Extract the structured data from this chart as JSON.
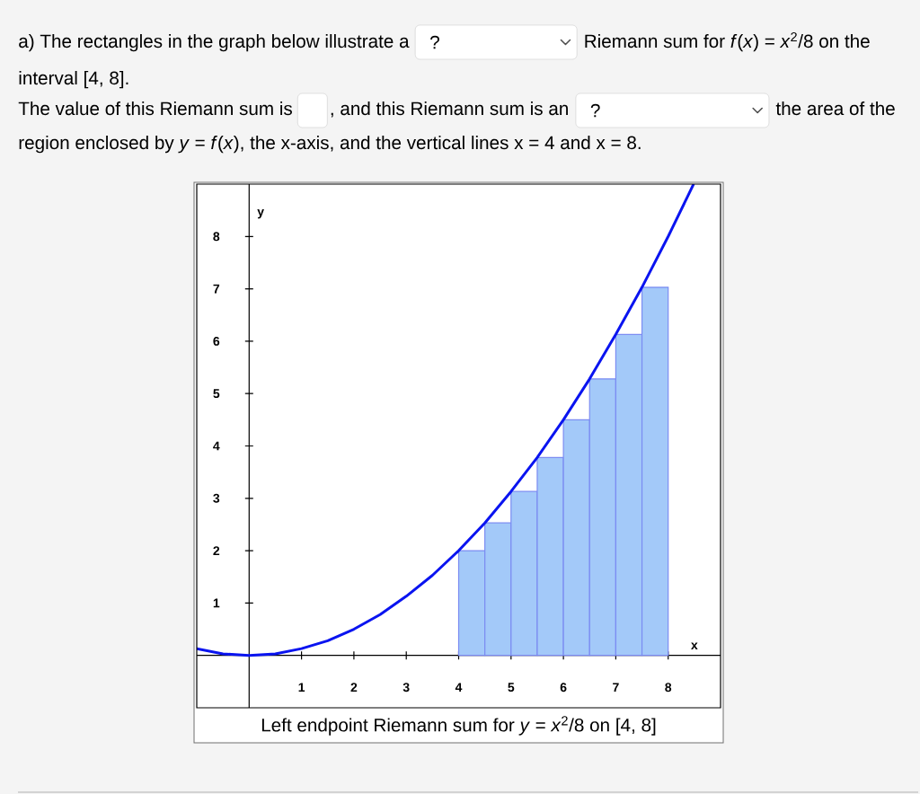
{
  "chart_data": {
    "type": "bar",
    "annotations": [
      "a) The rectangles in the graph below illustrate a",
      "?",
      "Riemann sum for *f*(*x*) = *x*$^{2}$/8 on the",
      "interval [4, 8].",
      "The value of this Riemann sum is",
      ", and this Riemann sum is an",
      "?",
      "the area of the",
      "region enclosed by *y* = *f*(*x*), the x-axis, and the vertical lines x = 4 and x = 8.",
      "Left endpoint Riemann sum for *y* = *x*$^{2}$/8 on [4, 8]"
    ],
    "xlabel": "x",
    "ylabel": "y",
    "xlim": [
      -1,
      9
    ],
    "ylim": [
      -1,
      9
    ],
    "xticks": [
      1,
      2,
      3,
      4,
      5,
      6,
      7,
      8
    ],
    "yticks": [
      1,
      2,
      3,
      4,
      5,
      6,
      7,
      8
    ],
    "series": [
      {
        "color": "#a3c9f9",
        "x": [
          4.25,
          4.75,
          5.25,
          5.75,
          6.25,
          6.75,
          7.25,
          7.75
        ],
        "values": [
          2,
          2.53,
          3.13,
          3.78,
          4.5,
          5.28,
          6.13,
          7.03
        ]
      },
      {
        "type": "line",
        "color": "#0a14f0",
        "x": [
          -1,
          -0.5,
          0,
          0.5,
          1,
          1.5,
          2,
          2.5,
          3,
          3.5,
          4,
          4.5,
          5,
          5.5,
          6,
          6.5,
          7,
          7.5,
          8,
          8.48
        ],
        "values": [
          0.13,
          0.03,
          0,
          0.03,
          0.13,
          0.28,
          0.5,
          0.78,
          1.13,
          1.53,
          2,
          2.53,
          3.13,
          3.78,
          4.5,
          5.28,
          6.13,
          7.03,
          8,
          8.99
        ]
      }
    ]
  }
}
